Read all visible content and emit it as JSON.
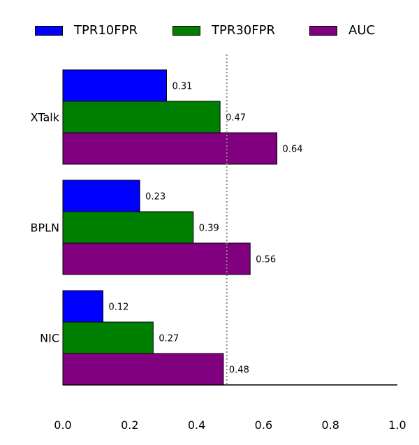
{
  "chart_data": {
    "type": "bar",
    "orientation": "horizontal",
    "categories": [
      "XTalk",
      "BPLN",
      "NIC"
    ],
    "series": [
      {
        "name": "TPR10FPR",
        "color": "#0000ff",
        "values": [
          0.31,
          0.23,
          0.12
        ]
      },
      {
        "name": "TPR30FPR",
        "color": "#008000",
        "values": [
          0.47,
          0.39,
          0.27
        ]
      },
      {
        "name": "AUC",
        "color": "#800080",
        "values": [
          0.64,
          0.56,
          0.48
        ]
      }
    ],
    "xlim": [
      0.0,
      1.0
    ],
    "xticks": [
      "0.0",
      "0.2",
      "0.4",
      "0.6",
      "0.8",
      "1.0"
    ],
    "reference_line": 0.49,
    "legend_position": "top",
    "grid": false
  }
}
